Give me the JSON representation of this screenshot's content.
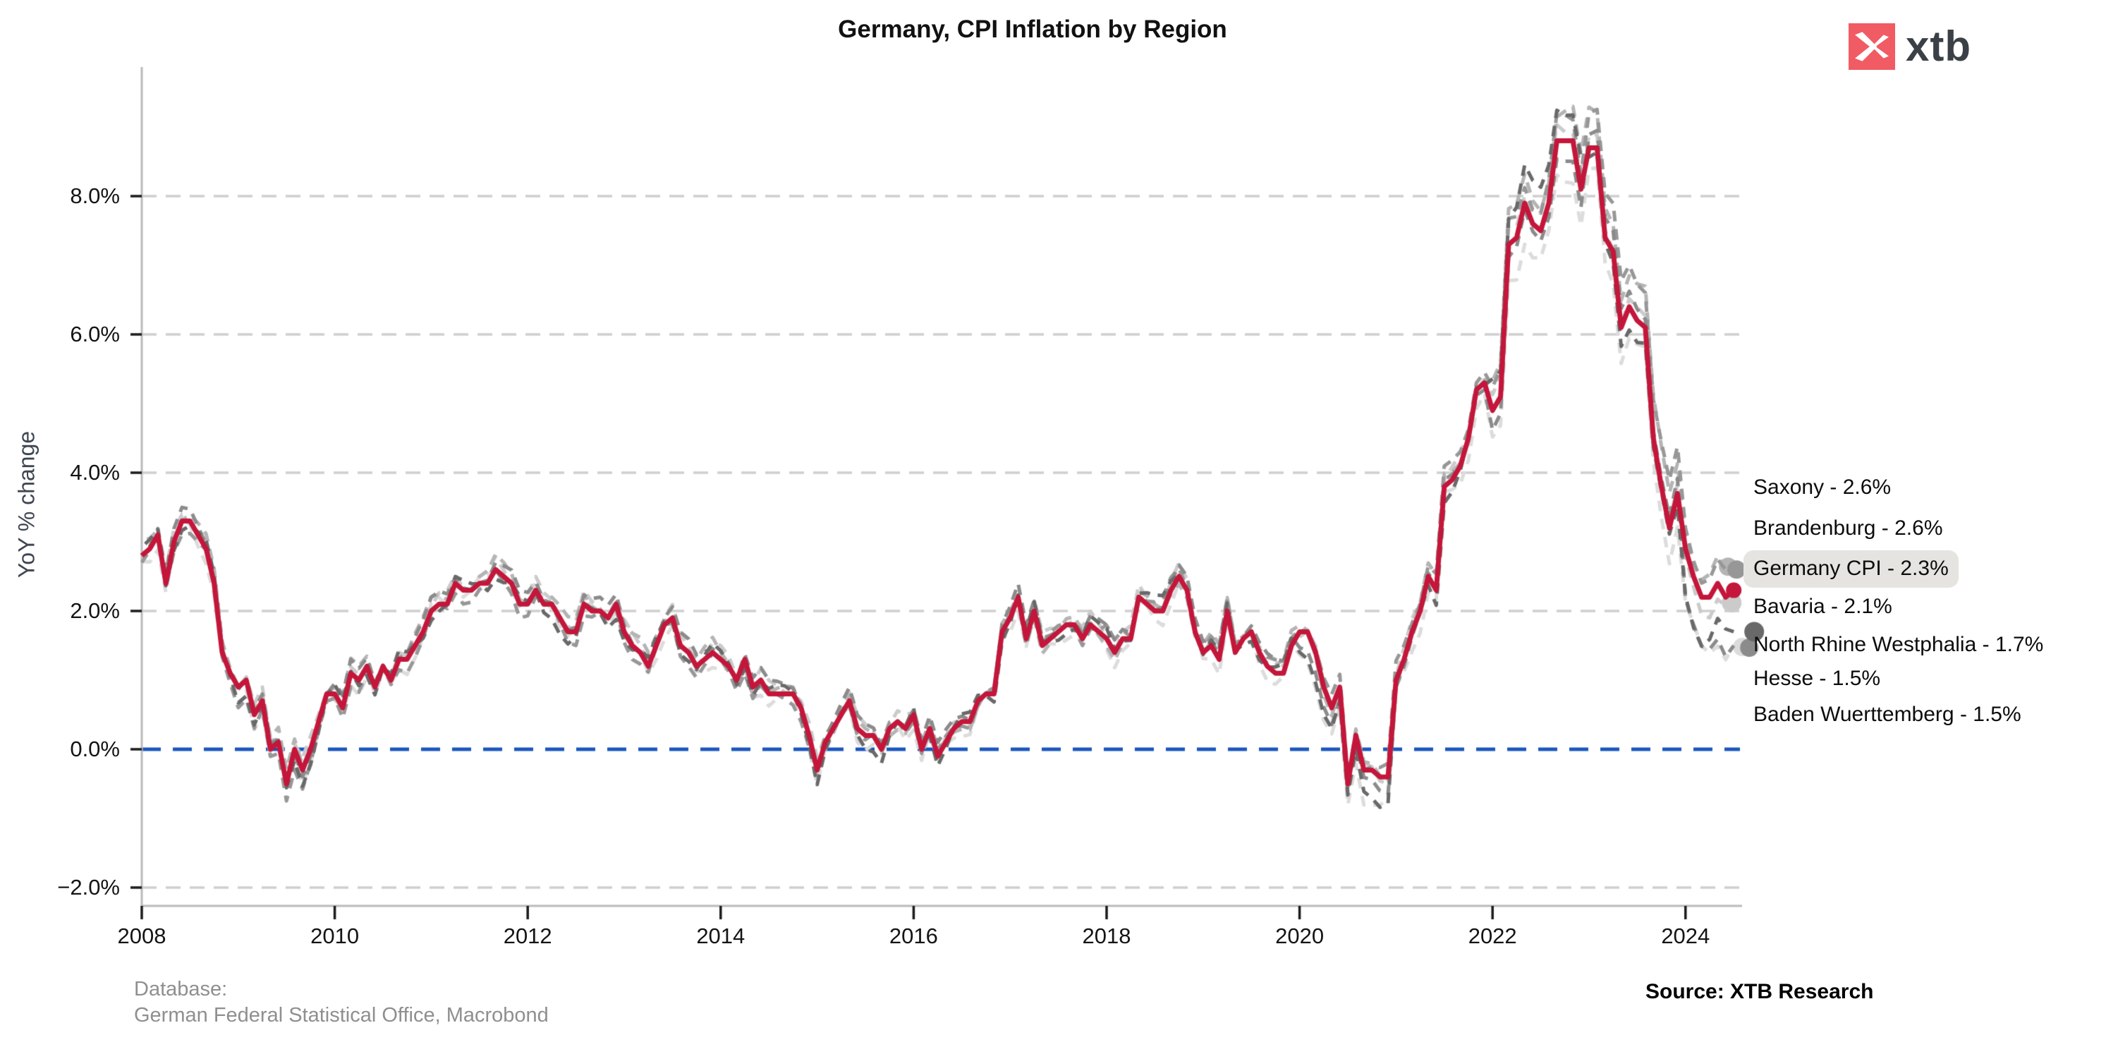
{
  "header": {
    "title": "Germany, CPI Inflation by Region",
    "logo": {
      "icon": "xtb-bird-icon",
      "text": "xtb",
      "square_color": "#f15b63",
      "text_color": "#3b4046"
    }
  },
  "footer": {
    "database_label": "Database:",
    "database_source": "German Federal Statistical Office, Macrobond",
    "source": "Source: XTB Research"
  },
  "axes": {
    "y_label": "YoY % change",
    "y_ticks": [
      {
        "label": "8.0%",
        "value": 8
      },
      {
        "label": "6.0%",
        "value": 6
      },
      {
        "label": "4.0%",
        "value": 4
      },
      {
        "label": "2.0%",
        "value": 2
      },
      {
        "label": "0.0%",
        "value": 0
      },
      {
        "label": "−2.0%",
        "value": -2
      }
    ],
    "x_ticks": [
      {
        "label": "2008",
        "value": 2008
      },
      {
        "label": "2010",
        "value": 2010
      },
      {
        "label": "2012",
        "value": 2012
      },
      {
        "label": "2014",
        "value": 2014
      },
      {
        "label": "2016",
        "value": 2016
      },
      {
        "label": "2018",
        "value": 2018
      },
      {
        "label": "2020",
        "value": 2020
      },
      {
        "label": "2022",
        "value": 2022
      },
      {
        "label": "2024",
        "value": 2024
      }
    ]
  },
  "colors": {
    "germany_line": "#c4163a",
    "zero_line": "#1a56be",
    "gridline": "#cfcfcf",
    "spine": "#b9b9b9",
    "legend_highlight_bg": "#e6e4e1"
  },
  "legend": {
    "items": [
      {
        "label": "Saxony - 2.6%",
        "series": "Saxony",
        "highlighted": false
      },
      {
        "label": "Brandenburg - 2.6%",
        "series": "Brandenburg",
        "highlighted": false
      },
      {
        "label": "Germany CPI - 2.3%",
        "series": "Germany CPI",
        "highlighted": true
      },
      {
        "label": "Bavaria - 2.1%",
        "series": "Bavaria",
        "highlighted": false
      },
      {
        "label": "North Rhine Westphalia - 1.7%",
        "series": "North Rhine Westphalia",
        "highlighted": false
      },
      {
        "label": "Hesse - 1.5%",
        "series": "Hesse",
        "highlighted": false
      },
      {
        "label": "Baden Wuerttemberg - 1.5%",
        "series": "Baden Wuerttemberg",
        "highlighted": false
      }
    ]
  },
  "chart_data": {
    "type": "line",
    "title": "Germany, CPI Inflation by Region",
    "xlabel": "",
    "ylabel": "YoY % change",
    "x_start_year": 2008,
    "x_step_months": 1,
    "n_points": 199,
    "x_end_year": 2024.5,
    "xlim": [
      2008,
      2024.7
    ],
    "ylim": [
      -2.45,
      9.85
    ],
    "grid": "horizontal dashed",
    "zero_line": {
      "value": 0,
      "color": "#1a56be",
      "style": "dashed"
    },
    "legend_position": "right-outside",
    "series": [
      {
        "name": "Germany CPI",
        "color": "#c4163a",
        "style": "solid",
        "line_width": 7,
        "end_value": 2.3,
        "values": [
          2.8,
          2.9,
          3.1,
          2.4,
          3.0,
          3.3,
          3.3,
          3.1,
          2.9,
          2.4,
          1.4,
          1.1,
          0.9,
          1.0,
          0.5,
          0.7,
          0.0,
          0.1,
          -0.5,
          0.0,
          -0.3,
          0.0,
          0.4,
          0.8,
          0.8,
          0.6,
          1.1,
          1.0,
          1.2,
          0.9,
          1.2,
          1.0,
          1.3,
          1.3,
          1.5,
          1.7,
          2.0,
          2.1,
          2.1,
          2.4,
          2.3,
          2.3,
          2.4,
          2.4,
          2.6,
          2.5,
          2.4,
          2.1,
          2.1,
          2.3,
          2.1,
          2.1,
          1.9,
          1.7,
          1.7,
          2.1,
          2.0,
          2.0,
          1.9,
          2.1,
          1.7,
          1.5,
          1.4,
          1.2,
          1.5,
          1.8,
          1.9,
          1.5,
          1.4,
          1.2,
          1.3,
          1.4,
          1.3,
          1.2,
          1.0,
          1.3,
          0.9,
          1.0,
          0.8,
          0.8,
          0.8,
          0.8,
          0.6,
          0.2,
          -0.3,
          0.1,
          0.3,
          0.5,
          0.7,
          0.3,
          0.2,
          0.2,
          0.0,
          0.3,
          0.4,
          0.3,
          0.5,
          0.0,
          0.3,
          -0.1,
          0.1,
          0.3,
          0.4,
          0.4,
          0.7,
          0.8,
          0.8,
          1.7,
          1.9,
          2.2,
          1.6,
          2.0,
          1.5,
          1.6,
          1.7,
          1.8,
          1.8,
          1.6,
          1.8,
          1.7,
          1.6,
          1.4,
          1.6,
          1.6,
          2.2,
          2.1,
          2.0,
          2.0,
          2.3,
          2.5,
          2.3,
          1.7,
          1.4,
          1.5,
          1.3,
          2.0,
          1.4,
          1.6,
          1.7,
          1.4,
          1.2,
          1.1,
          1.1,
          1.5,
          1.7,
          1.7,
          1.4,
          0.9,
          0.6,
          0.9,
          -0.5,
          0.2,
          -0.3,
          -0.3,
          -0.4,
          -0.4,
          1.0,
          1.3,
          1.7,
          2.0,
          2.5,
          2.3,
          3.8,
          3.9,
          4.1,
          4.5,
          5.2,
          5.3,
          4.9,
          5.1,
          7.3,
          7.4,
          7.9,
          7.6,
          7.5,
          7.9,
          8.8,
          8.8,
          8.8,
          8.1,
          8.7,
          8.7,
          7.4,
          7.2,
          6.1,
          6.4,
          6.2,
          6.1,
          4.5,
          3.8,
          3.2,
          3.7,
          2.9,
          2.5,
          2.2,
          2.2,
          2.4,
          2.2,
          2.3
        ]
      },
      {
        "name": "Saxony",
        "color": "#979797",
        "style": "dashed",
        "line_width": 5,
        "end_value": 2.6,
        "base_series": "Germany CPI",
        "year_offsets": [
          -0.1,
          -0.2,
          -0.1,
          -0.1,
          -0.1,
          -0.1,
          -0.1,
          0.0,
          0.0,
          0.0,
          0.1,
          0.1,
          0.1,
          0.2,
          0.3,
          0.6,
          0.3
        ],
        "wiggle": {
          "amp": 0.1,
          "freq": 0.9,
          "phase": 0.0
        }
      },
      {
        "name": "Brandenburg",
        "color": "#b4b4b4",
        "style": "dashed",
        "line_width": 5,
        "end_value": 2.6,
        "base_series": "Germany CPI",
        "year_offsets": [
          0.1,
          0.1,
          0.1,
          0.1,
          0.1,
          0.1,
          0.0,
          0.0,
          0.0,
          0.0,
          0.0,
          0.1,
          0.0,
          0.1,
          0.4,
          0.5,
          0.3
        ],
        "wiggle": {
          "amp": 0.12,
          "freq": 0.7,
          "phase": 2.0
        }
      },
      {
        "name": "Bavaria",
        "color": "#cbcbcb",
        "style": "dashed",
        "line_width": 5,
        "end_value": 2.1,
        "base_series": "Germany CPI",
        "year_offsets": [
          0.1,
          0.1,
          0.0,
          0.1,
          0.1,
          0.1,
          0.1,
          0.1,
          0.0,
          0.1,
          0.1,
          0.1,
          0.0,
          0.1,
          0.2,
          0.1,
          -0.2
        ],
        "wiggle": {
          "amp": 0.1,
          "freq": 1.1,
          "phase": 4.0
        }
      },
      {
        "name": "North Rhine Westphalia",
        "color": "#696969",
        "style": "dashed",
        "line_width": 5,
        "end_value": 1.7,
        "base_series": "Germany CPI",
        "year_offsets": [
          0.0,
          -0.1,
          0.0,
          0.0,
          -0.1,
          0.0,
          0.0,
          -0.1,
          0.0,
          0.0,
          0.1,
          0.0,
          -0.3,
          -0.1,
          0.5,
          -0.2,
          -0.6
        ],
        "wiggle": {
          "amp": 0.14,
          "freq": 0.8,
          "phase": 1.0
        }
      },
      {
        "name": "Hesse",
        "color": "#dcdcdc",
        "style": "dashed",
        "line_width": 5,
        "end_value": 1.5,
        "base_series": "Germany CPI",
        "year_offsets": [
          -0.1,
          -0.1,
          -0.1,
          0.0,
          0.0,
          -0.1,
          -0.1,
          -0.1,
          -0.1,
          -0.1,
          -0.1,
          -0.1,
          -0.4,
          -0.2,
          -0.5,
          -0.4,
          -0.8
        ],
        "wiggle": {
          "amp": 0.12,
          "freq": 1.0,
          "phase": 3.0
        }
      },
      {
        "name": "Baden Wuerttemberg",
        "color": "#8b8b8b",
        "style": "dashed",
        "line_width": 5,
        "end_value": 1.5,
        "base_series": "Germany CPI",
        "year_offsets": [
          0.1,
          0.0,
          0.1,
          0.1,
          0.1,
          0.1,
          0.1,
          0.1,
          0.1,
          0.1,
          0.1,
          0.1,
          -0.2,
          0.0,
          -0.2,
          0.2,
          -0.8
        ],
        "wiggle": {
          "amp": 0.1,
          "freq": 0.6,
          "phase": 5.0
        }
      }
    ]
  }
}
